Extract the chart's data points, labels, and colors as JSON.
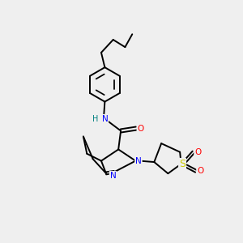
{
  "background_color": "#efefef",
  "fig_width": 3.0,
  "fig_height": 3.0,
  "dpi": 100,
  "atom_colors": {
    "N": "#0000ff",
    "O": "#ff0000",
    "S": "#cccc00",
    "C": "#000000",
    "H_label": "#008080"
  },
  "bond_color": "#000000",
  "bond_lw": 1.4,
  "font_size_atom": 7.5
}
